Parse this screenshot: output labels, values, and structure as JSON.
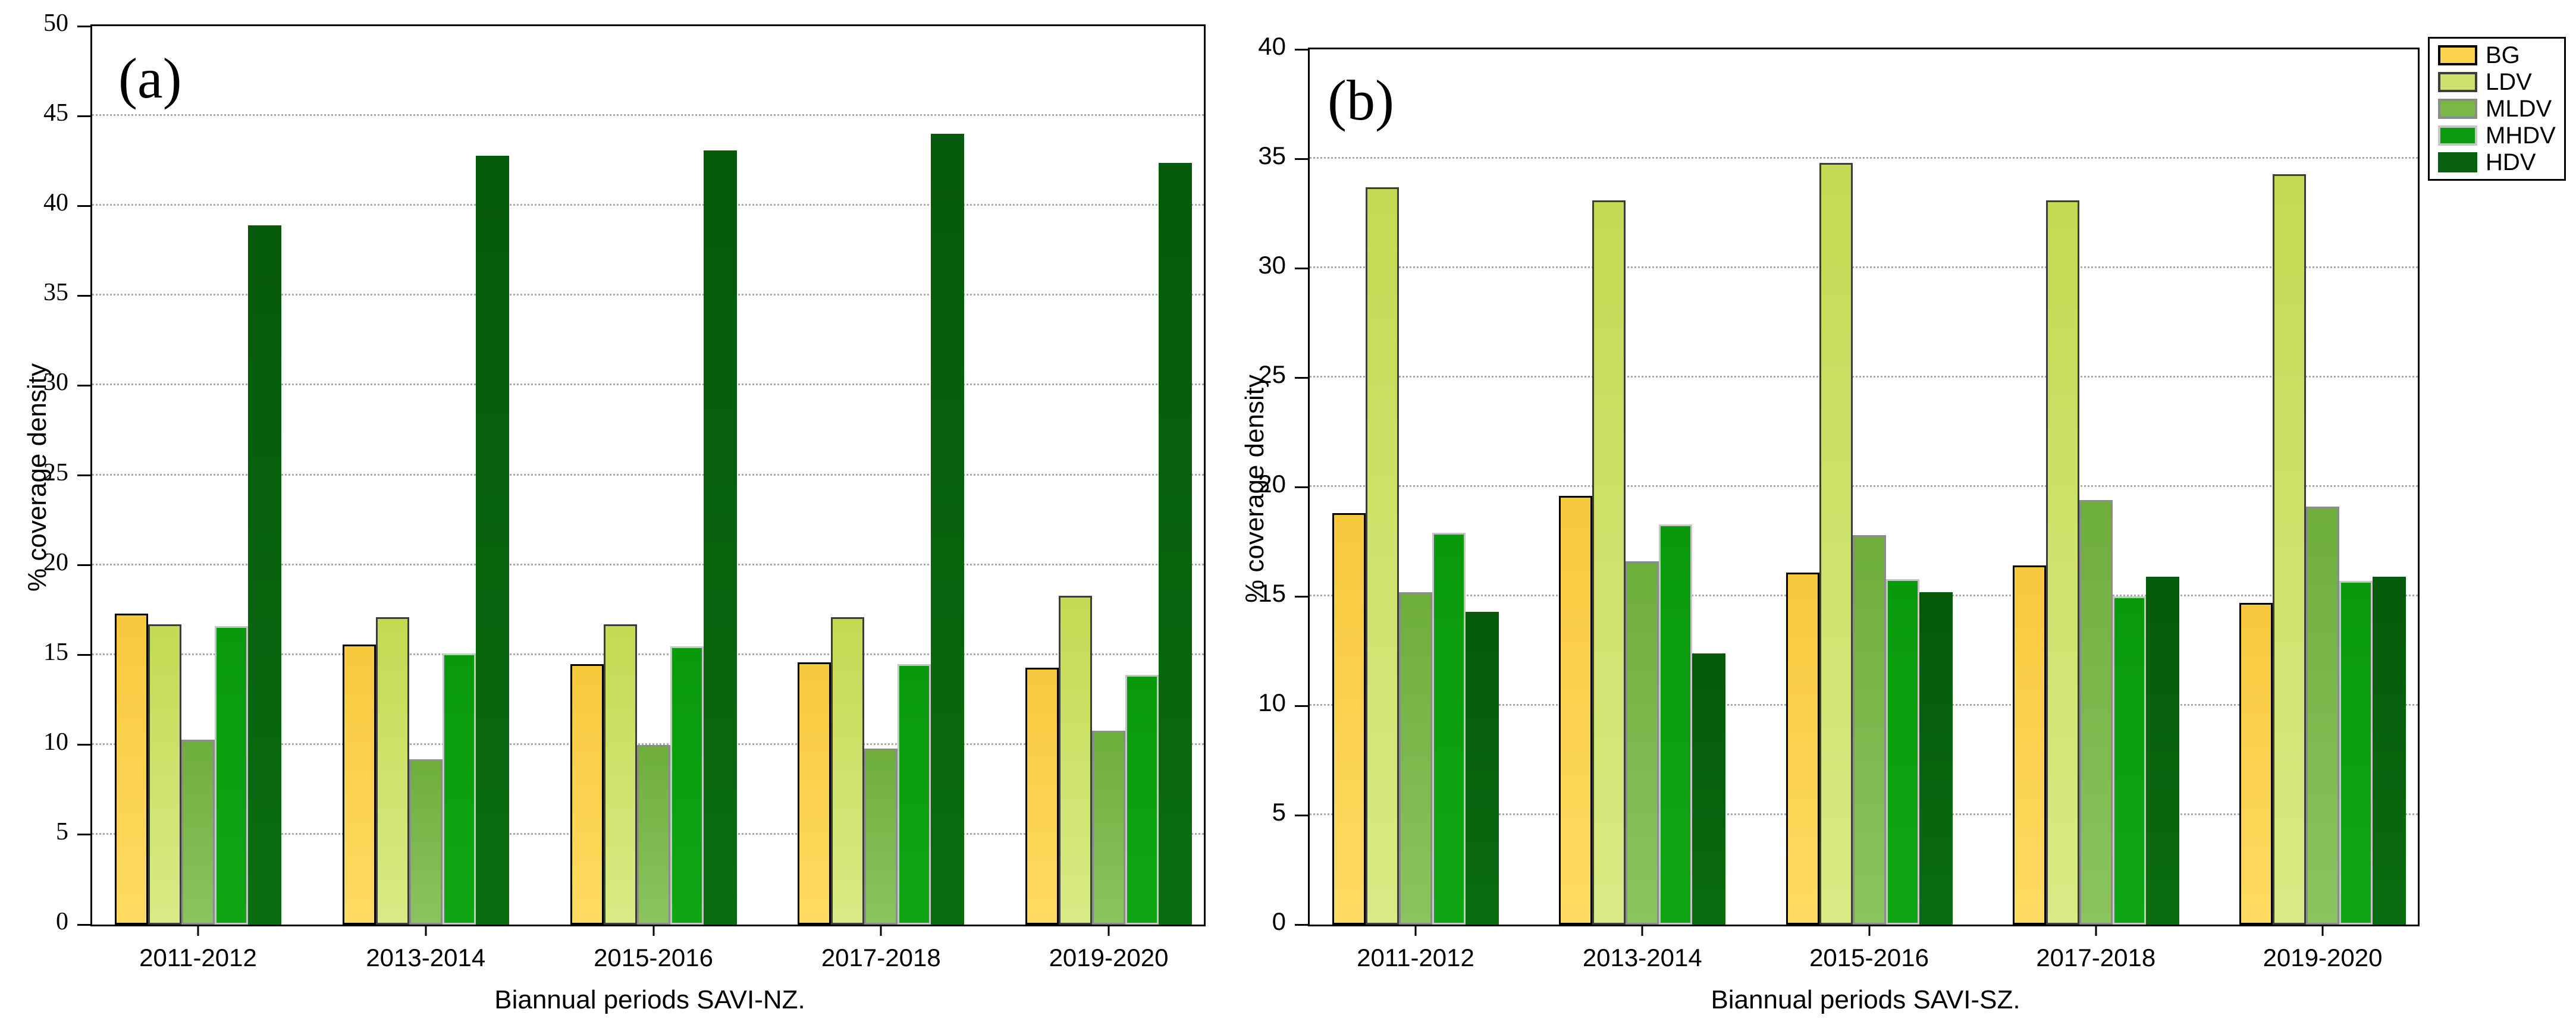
{
  "figure_kind": "dual grouped bar chart",
  "chart_data": [
    {
      "type": "bar",
      "panel_label": "(a)",
      "xlabel": "Biannual periods SAVI-NZ.",
      "ylabel": "% coverage density",
      "ylim": [
        0,
        50
      ],
      "ytick_step": 5,
      "yticks": [
        "0",
        "5",
        "10",
        "15",
        "20",
        "25",
        "30",
        "35",
        "40",
        "45",
        "50"
      ],
      "grid": "horizontal dotted at each tick",
      "categories": [
        "2011-2012",
        "2013-2014",
        "2015-2016",
        "2017-2018",
        "2019-2020"
      ],
      "series": [
        {
          "name": "BG",
          "values": [
            17.3,
            15.6,
            14.5,
            14.6,
            14.3
          ],
          "fill_top": "#F7C83C",
          "fill_bottom": "#FFDB63",
          "border": "#000000"
        },
        {
          "name": "LDV",
          "values": [
            16.7,
            17.1,
            16.7,
            17.1,
            18.3
          ],
          "fill_top": "#C3DA52",
          "fill_bottom": "#D8EB85",
          "border": "#3D3D3D"
        },
        {
          "name": "MLDV",
          "values": [
            10.3,
            9.2,
            10.0,
            9.8,
            10.8
          ],
          "fill_top": "#6EAE3C",
          "fill_bottom": "#8BC45F",
          "border": "#8C8C8C"
        },
        {
          "name": "MHDV",
          "values": [
            16.6,
            15.1,
            15.5,
            14.5,
            13.9
          ],
          "fill_top": "#089A0C",
          "fill_bottom": "#0FA614",
          "border": "#C6C6C6"
        },
        {
          "name": "HDV",
          "values": [
            38.9,
            42.8,
            43.1,
            44.0,
            42.4
          ],
          "fill_top": "#05590A",
          "fill_bottom": "#0A6C10",
          "border": ""
        }
      ]
    },
    {
      "type": "bar",
      "panel_label": "(b)",
      "xlabel": "Biannual periods SAVI-SZ.",
      "ylabel": "% coverage density",
      "ylim": [
        0,
        40
      ],
      "ytick_step": 5,
      "yticks": [
        "0",
        "5",
        "10",
        "15",
        "20",
        "25",
        "30",
        "35",
        "40"
      ],
      "grid": "horizontal dotted at each tick",
      "categories": [
        "2011-2012",
        "2013-2014",
        "2015-2016",
        "2017-2018",
        "2019-2020"
      ],
      "series": [
        {
          "name": "BG",
          "values": [
            18.8,
            19.6,
            16.1,
            16.4,
            14.7
          ],
          "fill_top": "#F7C83C",
          "fill_bottom": "#FFDB63",
          "border": "#000000"
        },
        {
          "name": "LDV",
          "values": [
            33.7,
            33.1,
            34.8,
            33.1,
            34.3
          ],
          "fill_top": "#C3DA52",
          "fill_bottom": "#D8EB85",
          "border": "#3D3D3D"
        },
        {
          "name": "MLDV",
          "values": [
            15.2,
            16.6,
            17.8,
            19.4,
            19.1
          ],
          "fill_top": "#6EAE3C",
          "fill_bottom": "#8BC45F",
          "border": "#8C8C8C"
        },
        {
          "name": "MHDV",
          "values": [
            17.9,
            18.3,
            15.8,
            15.0,
            15.7
          ],
          "fill_top": "#089A0C",
          "fill_bottom": "#0FA614",
          "border": "#C6C6C6"
        },
        {
          "name": "HDV",
          "values": [
            14.3,
            12.4,
            15.2,
            15.9,
            15.9
          ],
          "fill_top": "#05590A",
          "fill_bottom": "#0A6C10",
          "border": ""
        }
      ]
    }
  ],
  "legend": {
    "position": "outside top-right",
    "items": [
      {
        "label": "BG",
        "fill": "#FBD24B",
        "border": "#000000"
      },
      {
        "label": "LDV",
        "fill": "#CDE26B",
        "border": "#3D3D3D"
      },
      {
        "label": "MLDV",
        "fill": "#7AB74A",
        "border": "#8C8C8C"
      },
      {
        "label": "MHDV",
        "fill": "#0A9B10",
        "border": "#C6C6C6"
      },
      {
        "label": "HDV",
        "fill": "#07610C",
        "border": ""
      }
    ]
  },
  "colors": {
    "gridline": "#ABABAB",
    "axis": "#000000",
    "background": "#FFFFFF"
  }
}
